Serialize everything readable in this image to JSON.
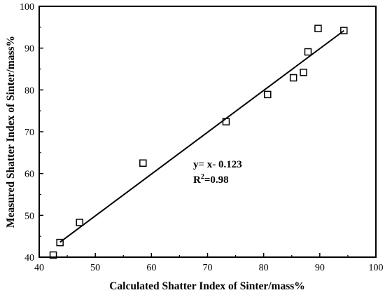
{
  "chart_data": {
    "type": "scatter",
    "xlabel": "Calculated Shatter Index of Sinter/mass%",
    "ylabel": "Measured Shatter Index of Sinter/mass%",
    "xlim": [
      40,
      100
    ],
    "ylim": [
      40,
      100
    ],
    "xticks": [
      "40",
      "50",
      "60",
      "70",
      "80",
      "90",
      "100"
    ],
    "yticks": [
      "40",
      "50",
      "60",
      "70",
      "80",
      "90",
      "100"
    ],
    "grid": false,
    "marker": "open-square",
    "points": [
      {
        "x": 42.5,
        "y": 40.5
      },
      {
        "x": 43.7,
        "y": 43.5
      },
      {
        "x": 47.2,
        "y": 48.3
      },
      {
        "x": 58.5,
        "y": 62.5
      },
      {
        "x": 73.3,
        "y": 72.4
      },
      {
        "x": 80.7,
        "y": 78.9
      },
      {
        "x": 85.3,
        "y": 82.9
      },
      {
        "x": 87.1,
        "y": 84.2
      },
      {
        "x": 87.9,
        "y": 89.1
      },
      {
        "x": 89.7,
        "y": 94.7
      },
      {
        "x": 94.3,
        "y": 94.2
      }
    ],
    "fit_line": {
      "x": [
        43.7,
        94.3
      ],
      "y": [
        43.577,
        94.177
      ]
    },
    "annotations": [
      {
        "prefix": "y= x- 0.123",
        "sup": "",
        "suffix": ""
      },
      {
        "prefix": "R",
        "sup": "2",
        "suffix": "=0.98"
      }
    ]
  }
}
